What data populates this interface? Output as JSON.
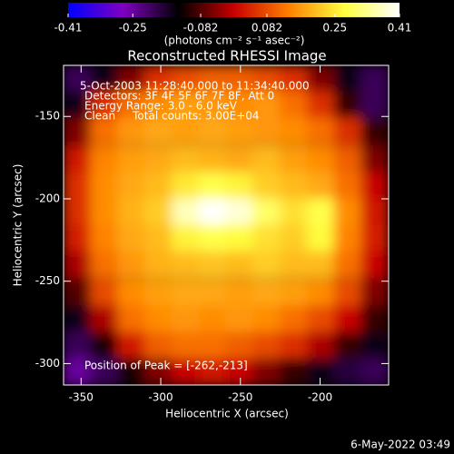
{
  "chart_data": {
    "type": "heatmap",
    "title": "Reconstructed RHESSI Image",
    "x_label": "Heliocentric X (arcsec)",
    "y_label": "Heliocentric Y (arcsec)",
    "colorbar_label": "(photons cm⁻² s⁻¹ asec⁻²)",
    "footer": "6-May-2022 03:49",
    "annotations": [
      "5-Oct-2003 11:28:40.000 to 11:34:40.000",
      "Detectors: 3F 4F 5F 6F 7F 8F, Att 0",
      "Energy Range: 3.0 - 6.0 keV",
      "Clean     Total counts: 3.00E+04"
    ],
    "peak_label": "Position of Peak = [-262,-213]",
    "xlim": [
      -361,
      -157
    ],
    "ylim": [
      -313,
      -119
    ],
    "xticks": [
      -350,
      -300,
      -250,
      -200
    ],
    "yticks": [
      -150,
      -200,
      -250,
      -300
    ],
    "clim": [
      -0.41,
      0.41
    ],
    "cticks": [
      -0.41,
      -0.25,
      -0.082,
      0.082,
      0.25,
      0.41
    ],
    "colormap": [
      "#0000ff",
      "#7f00c0",
      "#000000",
      "#c80000",
      "#ff8000",
      "#ffff40",
      "#ffffff"
    ],
    "x": [
      -352.5,
      -335.5,
      -318.5,
      -301.5,
      -284.5,
      -267.5,
      -250.5,
      -233.5,
      -216.5,
      -199.5,
      -182.5,
      -165.5
    ],
    "y": [
      -127,
      -143,
      -159,
      -176,
      -192,
      -208,
      -224,
      -240,
      -257,
      -273,
      -289,
      -305
    ],
    "values": [
      [
        -0.2,
        -0.15,
        -0.05,
        0.05,
        0.08,
        0.1,
        0.1,
        0.08,
        0.05,
        -0.05,
        -0.15,
        -0.2
      ],
      [
        -0.15,
        0.05,
        0.12,
        0.15,
        0.17,
        0.16,
        0.15,
        0.16,
        0.12,
        0.05,
        -0.1,
        -0.2
      ],
      [
        -0.05,
        0.12,
        0.16,
        0.18,
        0.17,
        0.18,
        0.17,
        0.16,
        0.15,
        0.12,
        0.05,
        -0.1
      ],
      [
        0.02,
        0.14,
        0.17,
        0.18,
        0.2,
        0.19,
        0.18,
        0.2,
        0.17,
        0.15,
        0.1,
        -0.05
      ],
      [
        0.05,
        0.15,
        0.18,
        0.2,
        0.25,
        0.28,
        0.26,
        0.22,
        0.2,
        0.18,
        0.12,
        0.0
      ],
      [
        0.05,
        0.15,
        0.19,
        0.22,
        0.36,
        0.41,
        0.38,
        0.3,
        0.24,
        0.28,
        0.15,
        0.02
      ],
      [
        0.03,
        0.14,
        0.18,
        0.2,
        0.26,
        0.28,
        0.27,
        0.24,
        0.22,
        0.27,
        0.14,
        0.03
      ],
      [
        -0.02,
        0.12,
        0.16,
        0.19,
        0.2,
        0.21,
        0.2,
        0.22,
        0.2,
        0.2,
        0.12,
        0.0
      ],
      [
        -0.08,
        0.08,
        0.15,
        0.17,
        0.18,
        0.18,
        0.17,
        0.18,
        0.17,
        0.15,
        0.08,
        -0.05
      ],
      [
        -0.15,
        -0.02,
        0.12,
        0.15,
        0.16,
        0.15,
        0.16,
        0.15,
        0.12,
        0.08,
        0.0,
        -0.1
      ],
      [
        -0.2,
        -0.12,
        0.02,
        0.1,
        0.12,
        0.12,
        0.1,
        0.08,
        0.05,
        -0.02,
        -0.1,
        -0.15
      ],
      [
        -0.25,
        -0.2,
        -0.12,
        -0.05,
        0.0,
        0.02,
        0.0,
        -0.05,
        -0.1,
        -0.15,
        -0.18,
        -0.2
      ]
    ]
  }
}
